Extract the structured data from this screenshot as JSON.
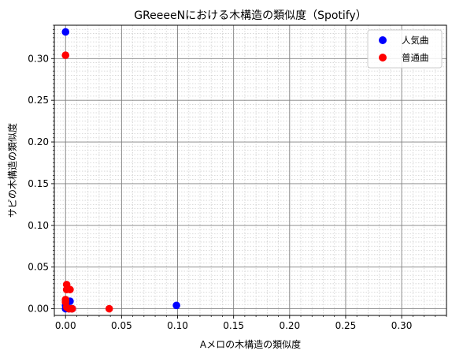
{
  "chart_data": {
    "type": "scatter",
    "title": "GReeeeNにおける木構造の類似度（Spotify）",
    "xlabel": "Aメロの木構造の類似度",
    "ylabel": "サビの木構造の類似度",
    "xlim": [
      -0.01,
      0.34
    ],
    "ylim": [
      -0.008,
      0.34
    ],
    "xticks": [
      0.0,
      0.05,
      0.1,
      0.15,
      0.2,
      0.25,
      0.3
    ],
    "xtick_labels": [
      "0.00",
      "0.05",
      "0.10",
      "0.15",
      "0.20",
      "0.25",
      "0.30"
    ],
    "yticks": [
      0.0,
      0.05,
      0.1,
      0.15,
      0.2,
      0.25,
      0.3
    ],
    "ytick_labels": [
      "0.00",
      "0.05",
      "0.10",
      "0.15",
      "0.20",
      "0.25",
      "0.30"
    ],
    "grid": true,
    "legend_position": "top-right",
    "series": [
      {
        "name": "人気曲",
        "color": "#0000ff",
        "points": [
          {
            "x": 0.0,
            "y": 0.332
          },
          {
            "x": 0.0,
            "y": 0.0
          },
          {
            "x": 0.0,
            "y": 0.004
          },
          {
            "x": 0.001,
            "y": 0.006
          },
          {
            "x": 0.004,
            "y": 0.009
          },
          {
            "x": 0.003,
            "y": 0.0
          },
          {
            "x": 0.006,
            "y": 0.0
          },
          {
            "x": 0.099,
            "y": 0.004
          }
        ]
      },
      {
        "name": "普通曲",
        "color": "#ff0000",
        "points": [
          {
            "x": 0.0,
            "y": 0.304
          },
          {
            "x": 0.001,
            "y": 0.029
          },
          {
            "x": 0.001,
            "y": 0.023
          },
          {
            "x": 0.004,
            "y": 0.023
          },
          {
            "x": 0.0,
            "y": 0.011
          },
          {
            "x": 0.0,
            "y": 0.008
          },
          {
            "x": 0.001,
            "y": 0.002
          },
          {
            "x": 0.003,
            "y": 0.0
          },
          {
            "x": 0.005,
            "y": 0.0
          },
          {
            "x": 0.006,
            "y": 0.0
          },
          {
            "x": 0.039,
            "y": 0.0
          }
        ]
      }
    ]
  }
}
